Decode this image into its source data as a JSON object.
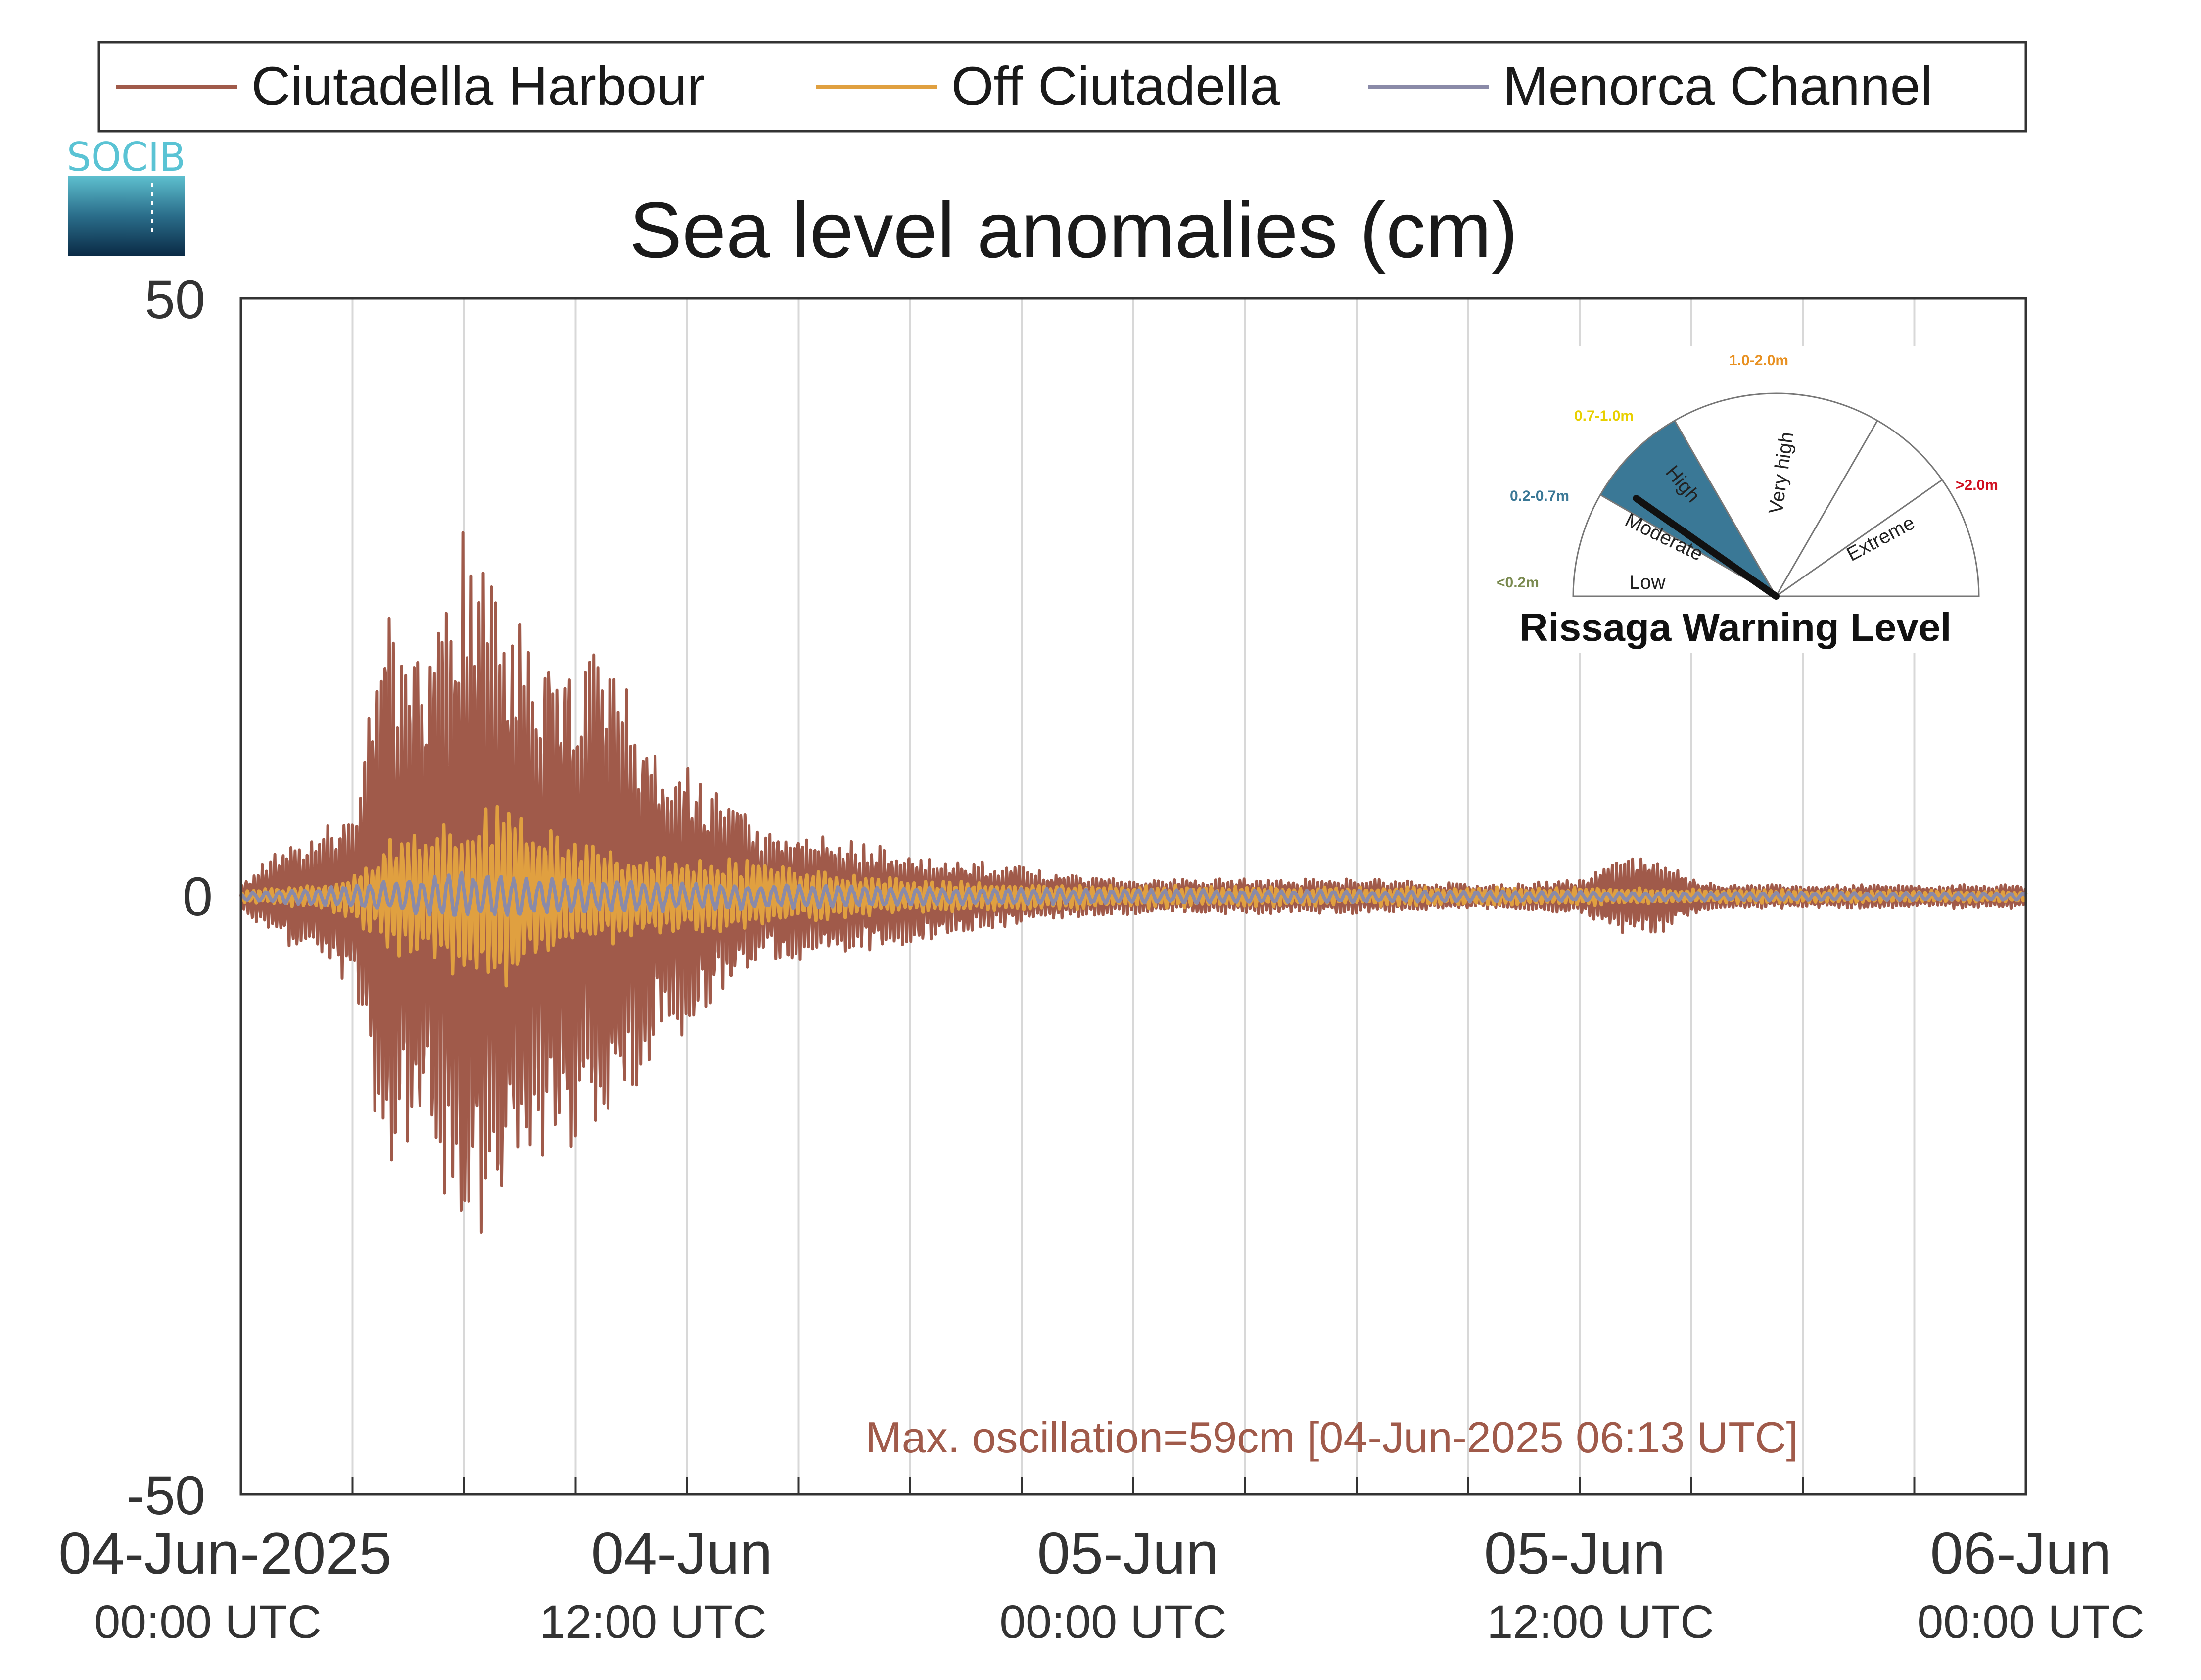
{
  "logo": {
    "text": "SOCIB"
  },
  "legend": {
    "items": [
      {
        "label": "Ciutadella Harbour",
        "color": "#a05a4a"
      },
      {
        "label": "Off Ciutadella",
        "color": "#e0a040"
      },
      {
        "label": "Menorca Channel",
        "color": "#8a8aa8"
      }
    ]
  },
  "chart_data": {
    "type": "line",
    "title": "Sea level anomalies (cm)",
    "xlabel": "",
    "ylabel": "",
    "ylim": [
      -50,
      50
    ],
    "yticks": [
      "50",
      "0",
      "-50"
    ],
    "x_unit": "hours since 04-Jun-2025 00:00 UTC",
    "xlim": [
      0,
      48
    ],
    "xticks": [
      {
        "main": "04-Jun-2025",
        "sub": "00:00 UTC"
      },
      {
        "main": "04-Jun",
        "sub": "12:00 UTC"
      },
      {
        "main": "05-Jun",
        "sub": "00:00 UTC"
      },
      {
        "main": "05-Jun",
        "sub": "12:00 UTC"
      },
      {
        "main": "06-Jun",
        "sub": "00:00 UTC"
      }
    ],
    "grid": "vertical",
    "legend_position": "top",
    "series": [
      {
        "name": "Ciutadella Harbour",
        "color": "#a05a4a",
        "envelope_x": [
          0,
          1,
          2,
          3,
          4,
          5,
          6,
          7,
          8,
          9,
          10,
          11,
          12,
          14,
          16,
          18,
          20,
          22,
          24,
          26,
          28,
          30,
          32,
          34,
          36,
          37,
          38,
          39,
          40,
          42,
          44,
          46,
          48
        ],
        "envelope_amp": [
          1,
          4,
          5,
          8,
          25,
          20,
          32,
          26,
          22,
          21,
          20,
          14,
          12,
          6,
          5,
          4,
          3,
          2,
          1.5,
          1.5,
          1.5,
          1.5,
          1.2,
          1,
          1.5,
          3,
          3.5,
          1.5,
          1,
          1,
          1,
          1,
          1
        ]
      },
      {
        "name": "Off Ciutadella",
        "color": "#e0a040",
        "envelope_x": [
          0,
          2,
          3,
          4,
          5,
          6,
          7,
          8,
          9,
          10,
          12,
          14,
          16,
          18,
          20,
          24,
          30,
          36,
          40,
          48
        ],
        "envelope_amp": [
          0.5,
          1,
          2,
          5,
          6,
          7,
          9,
          6,
          5,
          4,
          3.5,
          3,
          2,
          1.5,
          1.2,
          1,
          0.8,
          0.8,
          0.6,
          0.5
        ]
      },
      {
        "name": "Menorca Channel",
        "color": "#8a8aa8",
        "envelope_x": [
          0,
          3,
          6,
          9,
          12,
          18,
          24,
          36,
          48
        ],
        "envelope_amp": [
          0.3,
          1,
          2,
          1.5,
          1.2,
          0.8,
          0.6,
          0.4,
          0.3
        ]
      }
    ],
    "annotation": {
      "text": "Max. oscillation=59cm [04-Jun-2025 06:13 UTC]",
      "color": "#a05a4a"
    }
  },
  "gauge": {
    "title": "Rissaga Warning Level",
    "active_level": "Moderate",
    "active_color": "#3a7896",
    "levels": [
      {
        "label": "Low",
        "range": "<0.2m",
        "range_color": "#7a8a50"
      },
      {
        "label": "Moderate",
        "range": "0.2-0.7m",
        "range_color": "#3a7896"
      },
      {
        "label": "High",
        "range": "0.7-1.0m",
        "range_color": "#e8d000"
      },
      {
        "label": "Very high",
        "range": "1.0-2.0m",
        "range_color": "#e89020"
      },
      {
        "label": "Extreme",
        "range": ">2.0m",
        "range_color": "#d01020"
      }
    ]
  }
}
